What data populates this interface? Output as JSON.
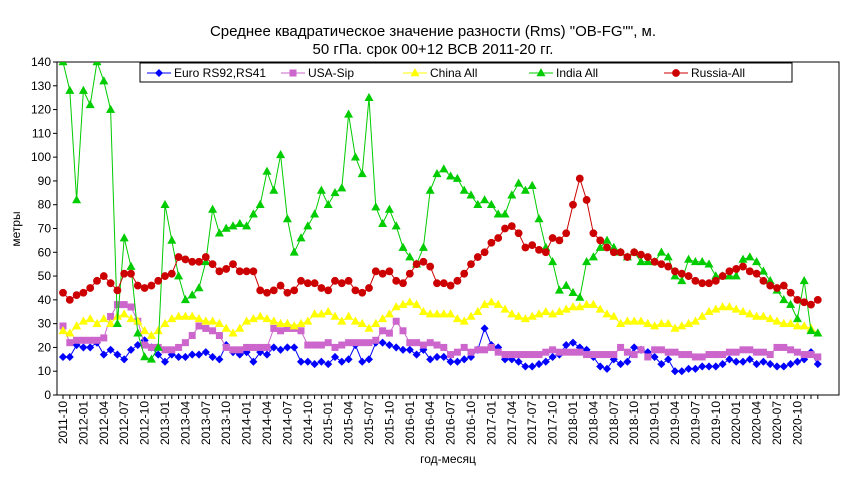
{
  "chart_data": {
    "type": "line",
    "title": "Среднее квадратическое значение разности (Rms) \"OB-FG\"\", м.",
    "subtitle": "50 гПа. срок 00+12 ВСВ 2011-20 гг.",
    "xlabel": "год-месяц",
    "ylabel": "метры",
    "ylim": [
      0,
      140
    ],
    "yticks": [
      0,
      10,
      20,
      30,
      40,
      50,
      60,
      70,
      80,
      90,
      100,
      110,
      120,
      130,
      140
    ],
    "grid": false,
    "legend_position": "top",
    "xtick_labels": [
      "2011-10",
      "2012-01",
      "2012-04",
      "2012-07",
      "2012-10",
      "2013-01",
      "2013-04",
      "2013-07",
      "2013-10",
      "2014-01",
      "2014-04",
      "2014-07",
      "2014-10",
      "2015-01",
      "2015-04",
      "2015-07",
      "2015-10",
      "2016-01",
      "2016-04",
      "2016-07",
      "2016-10",
      "2017-01",
      "2017-04",
      "2017-07",
      "2017-10",
      "2018-01",
      "2018-04",
      "2018-07",
      "2018-10",
      "2019-01",
      "2019-04",
      "2019-07",
      "2019-10",
      "2020-01",
      "2020-04",
      "2020-07",
      "2020-10"
    ],
    "x_start": "2011-10",
    "n_points": 112,
    "series": [
      {
        "name": "Euro RS92,RS41",
        "color": "#0000ff",
        "marker": "diamond",
        "values": [
          16,
          16,
          21,
          20,
          20,
          22,
          17,
          19,
          17,
          15,
          19,
          21,
          23,
          20,
          17,
          14,
          17,
          16,
          16,
          17,
          17,
          18,
          16,
          15,
          21,
          18,
          17,
          18,
          14,
          18,
          17,
          20,
          19,
          20,
          20,
          14,
          14,
          13,
          14,
          13,
          16,
          14,
          15,
          21,
          14,
          15,
          22,
          22,
          21,
          20,
          19,
          19,
          17,
          19,
          15,
          16,
          16,
          14,
          14,
          15,
          16,
          19,
          28,
          21,
          20,
          15,
          15,
          14,
          12,
          12,
          13,
          14,
          16,
          17,
          21,
          22,
          20,
          19,
          16,
          12,
          11,
          15,
          13,
          14,
          20,
          19,
          18,
          16,
          13,
          15,
          10,
          10,
          11,
          11,
          12,
          12,
          12,
          13,
          15,
          14,
          14,
          15,
          13,
          14,
          13,
          12,
          12,
          13,
          14,
          15,
          18,
          13
        ]
      },
      {
        "name": "USA-Sip",
        "color": "#cc66cc",
        "marker": "square",
        "values": [
          29,
          22,
          23,
          23,
          23,
          23,
          24,
          33,
          38,
          38,
          37,
          31,
          21,
          20,
          20,
          19,
          19,
          20,
          22,
          25,
          29,
          28,
          27,
          25,
          20,
          19,
          19,
          20,
          20,
          20,
          20,
          28,
          27,
          28,
          28,
          27,
          21,
          21,
          21,
          22,
          20,
          21,
          22,
          22,
          22,
          22,
          23,
          27,
          26,
          31,
          27,
          22,
          22,
          21,
          22,
          21,
          20,
          17,
          18,
          20,
          18,
          19,
          19,
          20,
          18,
          17,
          17,
          17,
          17,
          17,
          17,
          18,
          19,
          18,
          18,
          18,
          18,
          17,
          17,
          17,
          17,
          17,
          20,
          18,
          17,
          19,
          16,
          19,
          19,
          18,
          18,
          17,
          17,
          16,
          16,
          17,
          17,
          17,
          18,
          18,
          19,
          19,
          18,
          18,
          17,
          20,
          20,
          19,
          18,
          17,
          17,
          16
        ]
      },
      {
        "name": "China All",
        "color": "#ffff00",
        "marker": "triangle",
        "values": [
          27,
          26,
          29,
          31,
          32,
          30,
          32,
          30,
          33,
          34,
          32,
          31,
          27,
          25,
          27,
          30,
          32,
          33,
          33,
          33,
          32,
          31,
          31,
          30,
          28,
          26,
          28,
          31,
          32,
          33,
          32,
          31,
          30,
          30,
          29,
          30,
          31,
          34,
          34,
          35,
          33,
          31,
          33,
          31,
          30,
          28,
          30,
          32,
          34,
          37,
          38,
          39,
          38,
          35,
          34,
          34,
          34,
          34,
          32,
          31,
          33,
          35,
          38,
          39,
          38,
          36,
          34,
          33,
          32,
          33,
          34,
          35,
          34,
          35,
          36,
          37,
          37,
          38,
          38,
          36,
          34,
          33,
          30,
          31,
          31,
          31,
          30,
          29,
          30,
          30,
          28,
          29,
          30,
          31,
          33,
          35,
          36,
          37,
          37,
          36,
          35,
          34,
          33,
          33,
          32,
          31,
          30,
          30,
          29,
          29,
          28,
          26
        ]
      },
      {
        "name": "India All",
        "color": "#00cc00",
        "marker": "triangle",
        "values": [
          140,
          128,
          82,
          128,
          122,
          140,
          132,
          120,
          30,
          66,
          54,
          26,
          16,
          15,
          20,
          80,
          65,
          50,
          40,
          42,
          45,
          56,
          78,
          68,
          70,
          71,
          72,
          71,
          76,
          80,
          94,
          86,
          101,
          74,
          60,
          66,
          71,
          76,
          86,
          80,
          85,
          87,
          118,
          100,
          93,
          125,
          79,
          72,
          78,
          71,
          62,
          58,
          55,
          62,
          86,
          93,
          95,
          92,
          91,
          86,
          84,
          80,
          82,
          80,
          76,
          76,
          84,
          89,
          86,
          88,
          74,
          62,
          56,
          44,
          46,
          43,
          41,
          56,
          58,
          62,
          65,
          62,
          60,
          58,
          60,
          56,
          56,
          56,
          60,
          58,
          50,
          48,
          57,
          56,
          56,
          55,
          50,
          50,
          50,
          50,
          57,
          58,
          56,
          52,
          48,
          44,
          40,
          38,
          32,
          48,
          27,
          26
        ]
      },
      {
        "name": "Russia-All",
        "color": "#cc0000",
        "marker": "circle",
        "values": [
          43,
          40,
          42,
          43,
          45,
          48,
          50,
          47,
          44,
          51,
          51,
          46,
          45,
          46,
          48,
          50,
          51,
          58,
          57,
          56,
          56,
          58,
          55,
          52,
          53,
          55,
          52,
          52,
          52,
          44,
          43,
          44,
          46,
          43,
          44,
          48,
          47,
          47,
          45,
          44,
          48,
          47,
          48,
          44,
          43,
          45,
          52,
          51,
          52,
          48,
          47,
          51,
          55,
          56,
          54,
          47,
          47,
          46,
          48,
          51,
          55,
          58,
          60,
          64,
          66,
          70,
          71,
          68,
          62,
          63,
          61,
          60,
          66,
          65,
          68,
          80,
          91,
          82,
          68,
          65,
          62,
          60,
          60,
          58,
          60,
          59,
          58,
          56,
          55,
          54,
          52,
          51,
          50,
          48,
          47,
          47,
          48,
          50,
          52,
          53,
          54,
          52,
          51,
          48,
          46,
          45,
          46,
          43,
          40,
          39,
          38,
          40
        ]
      }
    ]
  }
}
